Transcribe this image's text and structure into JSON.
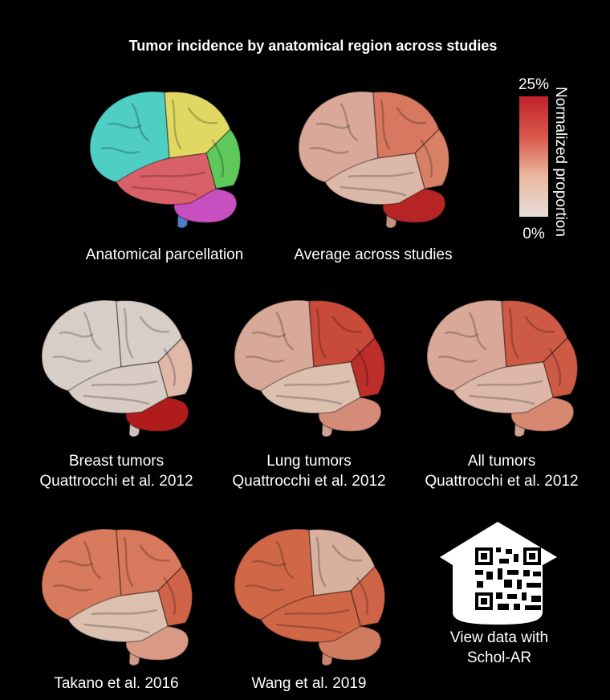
{
  "header": {
    "title": "Tumor incidence by anatomical region across studies"
  },
  "colorbar": {
    "label": "Normalized proportion",
    "max_label": "25%",
    "min_label": "0%",
    "colors": [
      "#e6deda",
      "#ecb8a0",
      "#d8584a",
      "#c0222a"
    ]
  },
  "panels": [
    {
      "labels": [
        "Anatomical parcellation"
      ],
      "colors": [
        "#4fcfc4",
        "#e0d862",
        "#5ec85a",
        "#d96068",
        "#c84fc0",
        "#4a80c8"
      ]
    },
    {
      "labels": [
        "Average across studies"
      ],
      "colors": [
        "#d9a898",
        "#d97860",
        "#d88066",
        "#dcb8a8",
        "#b52525",
        "#c89282"
      ]
    },
    {
      "labels": [
        "Breast tumors",
        "Quattrocchi et al. 2012"
      ],
      "colors": [
        "#d8cec8",
        "#d8cec8",
        "#e0b8a8",
        "#d8ccc4",
        "#b01c1c",
        "#cfc2ba"
      ]
    },
    {
      "labels": [
        "Lung tumors",
        "Quattrocchi et al. 2012"
      ],
      "colors": [
        "#d8a898",
        "#c84a38",
        "#bb2e2a",
        "#dcc0b0",
        "#d48c78",
        "#cfa292"
      ]
    },
    {
      "labels": [
        "All tumors",
        "Quattrocchi et al. 2012"
      ],
      "colors": [
        "#d9a898",
        "#cc5a44",
        "#cc5a44",
        "#ddb8a8",
        "#d88870",
        "#cfa292"
      ]
    },
    {
      "labels": [
        "Takano et al. 2016"
      ],
      "colors": [
        "#d87a5e",
        "#d8785c",
        "#d06448",
        "#dcc0b0",
        "#d89a84",
        "#cf9a86"
      ]
    },
    {
      "labels": [
        "Wang et al. 2019"
      ],
      "colors": [
        "#d06848",
        "#d8b09e",
        "#d06448",
        "#d06848",
        "#d07a60",
        "#c98470"
      ]
    }
  ],
  "qr": {
    "labels": [
      "View data with",
      "Schol-AR"
    ]
  }
}
